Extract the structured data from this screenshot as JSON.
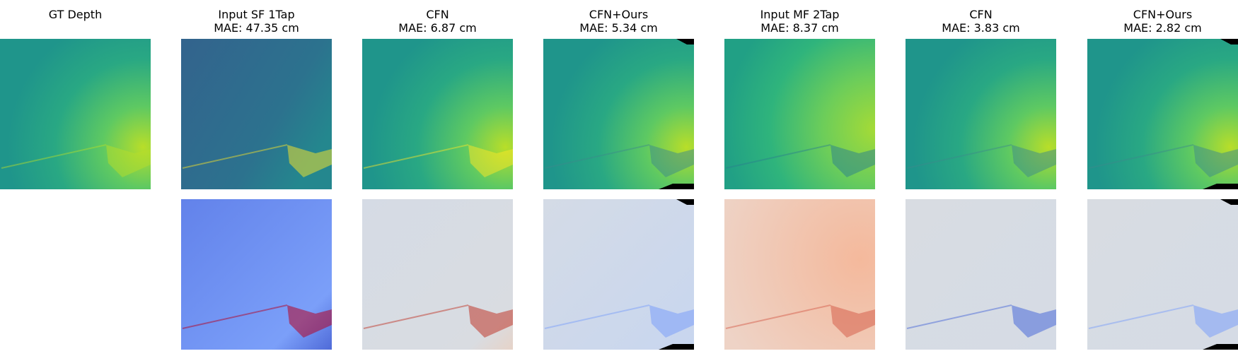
{
  "columns": [
    {
      "title": "GT Depth"
    },
    {
      "title": "Input SF 1Tap",
      "subtitle": "MAE: 47.35 cm"
    },
    {
      "title": "CFN",
      "subtitle": "MAE: 6.87 cm"
    },
    {
      "title": "CFN+Ours",
      "subtitle": "MAE: 5.34 cm"
    },
    {
      "title": "Input MF 2Tap",
      "subtitle": "MAE: 8.37 cm"
    },
    {
      "title": "CFN",
      "subtitle": "MAE: 3.83 cm"
    },
    {
      "title": "CFN+Ours",
      "subtitle": "MAE: 2.82 cm"
    }
  ]
}
